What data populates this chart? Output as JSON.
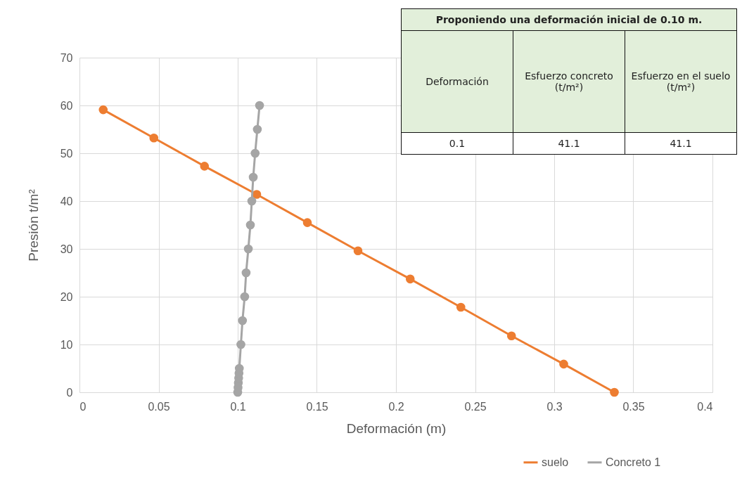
{
  "chart_data": {
    "type": "line",
    "xlabel": "Deformación (m)",
    "ylabel": "Presión t/m²",
    "xlim": [
      0,
      0.4
    ],
    "xticks": [
      0,
      0.05,
      0.1,
      0.15,
      0.2,
      0.25,
      0.3,
      0.35,
      0.4
    ],
    "ylim": [
      0,
      70
    ],
    "yticks": [
      0,
      10,
      20,
      30,
      40,
      50,
      60,
      70
    ],
    "grid": true,
    "legend": "bottom right",
    "marker": "circle",
    "series": [
      {
        "name": "suelo",
        "color": "#ed7d31",
        "x": [
          0.015,
          0.047,
          0.079,
          0.112,
          0.144,
          0.176,
          0.209,
          0.241,
          0.273,
          0.306,
          0.338
        ],
        "values": [
          59.1,
          53.2,
          47.3,
          41.4,
          35.5,
          29.6,
          23.7,
          17.8,
          11.8,
          5.9,
          0
        ]
      },
      {
        "name": "Concreto 1",
        "color": "#a5a5a5",
        "x": [
          0.1,
          0.1002,
          0.1004,
          0.1006,
          0.1008,
          0.101,
          0.102,
          0.103,
          0.1044,
          0.1053,
          0.1067,
          0.108,
          0.1089,
          0.1098,
          0.111,
          0.1124,
          0.1138
        ],
        "values": [
          0,
          1,
          2,
          3,
          4,
          5,
          10,
          15,
          20,
          25,
          30,
          35,
          40,
          45,
          50,
          55,
          60
        ]
      }
    ],
    "annotations": [
      "Proponiendo una deformación inicial de 0.10 m.",
      "Deformación",
      "Esfuerzo concreto (t/m²)",
      "Esfuerzo en el suelo (t/m²)",
      "0.1",
      "41.1",
      "41.1"
    ]
  }
}
